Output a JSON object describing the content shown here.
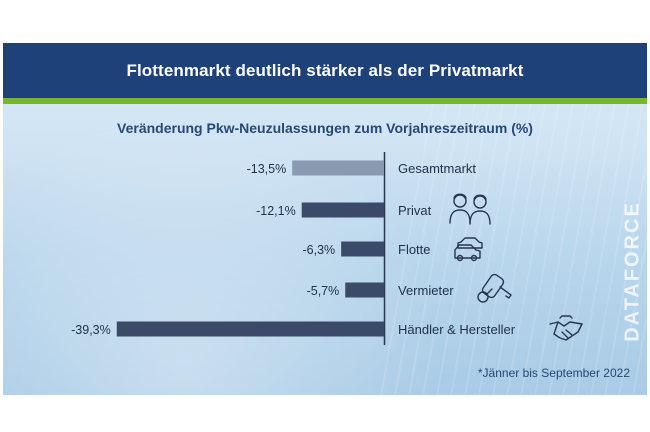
{
  "title": "Flottenmarkt deutlich stärker als der Privatmarkt",
  "watermark": "DATAFORCE",
  "footnote": "*Jänner bis September 2022",
  "colors": {
    "header": "#1d4178",
    "accent": "#76b82a",
    "bar_total": "#8a9ab0",
    "bar": "#3b4a68"
  },
  "chart_data": {
    "type": "bar",
    "orientation": "horizontal",
    "title": "Veränderung Pkw-Neuzulassungen zum Vorjahreszeitraum (%)",
    "categories": [
      "Gesamtmarkt",
      "Privat",
      "Flotte",
      "Vermieter",
      "Händler & Hersteller"
    ],
    "values": [
      -13.5,
      -12.1,
      -6.3,
      -5.7,
      -39.3
    ],
    "value_labels": [
      "-13,5%",
      "-12,1%",
      "-6,3%",
      "-5,7%",
      "-39,3%"
    ],
    "icons": [
      "",
      "people-icon",
      "cars-icon",
      "car-key-icon",
      "handshake-icon"
    ],
    "xlim": [
      -40,
      0
    ],
    "grid": false
  }
}
